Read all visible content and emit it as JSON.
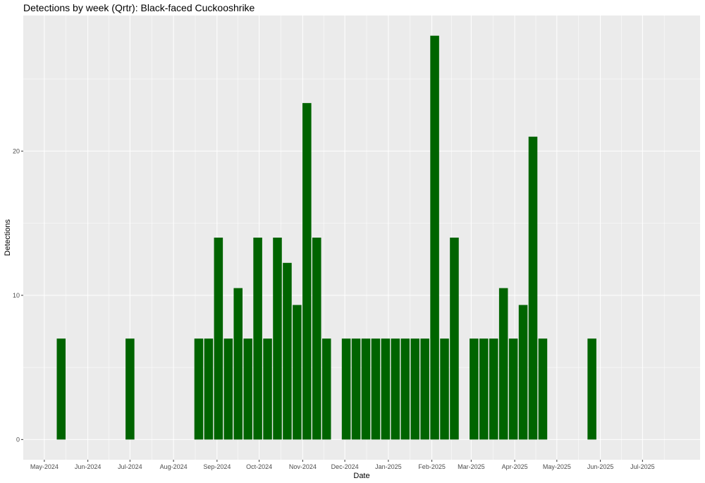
{
  "chart_data": {
    "type": "bar",
    "title": "Detections by week (Qrtr): Black-faced Cuckooshrike",
    "xlabel": "Date",
    "ylabel": "Detections",
    "xlim": [
      "2024-04-16",
      "2025-08-11"
    ],
    "ylim": [
      -1.4,
      29.4
    ],
    "x_ticks": [
      "May-2024",
      "Jun-2024",
      "Jul-2024",
      "Aug-2024",
      "Sep-2024",
      "Oct-2024",
      "Nov-2024",
      "Dec-2024",
      "Jan-2025",
      "Feb-2025",
      "Mar-2025",
      "Apr-2025",
      "May-2025",
      "Jun-2025",
      "Jul-2025"
    ],
    "x_tick_dates": [
      "2024-05-01",
      "2024-06-01",
      "2024-07-01",
      "2024-08-01",
      "2024-09-01",
      "2024-10-01",
      "2024-11-01",
      "2024-12-01",
      "2025-01-01",
      "2025-02-01",
      "2025-03-01",
      "2025-04-01",
      "2025-05-01",
      "2025-06-01",
      "2025-07-01"
    ],
    "y_ticks": [
      0,
      10,
      20
    ],
    "grid": true,
    "bar_color": "#006400",
    "panel_color": "#ebebeb",
    "x": [
      "2024-05-13",
      "2024-07-01",
      "2024-08-19",
      "2024-08-26",
      "2024-09-02",
      "2024-09-09",
      "2024-09-16",
      "2024-09-23",
      "2024-09-30",
      "2024-10-07",
      "2024-10-14",
      "2024-10-21",
      "2024-10-28",
      "2024-11-04",
      "2024-11-11",
      "2024-11-18",
      "2024-12-02",
      "2024-12-09",
      "2024-12-16",
      "2024-12-23",
      "2024-12-30",
      "2025-01-06",
      "2025-01-13",
      "2025-01-20",
      "2025-01-27",
      "2025-02-03",
      "2025-02-10",
      "2025-02-17",
      "2025-03-03",
      "2025-03-10",
      "2025-03-17",
      "2025-03-24",
      "2025-03-31",
      "2025-04-07",
      "2025-04-14",
      "2025-04-21",
      "2025-05-26"
    ],
    "values": [
      7,
      7,
      7,
      7,
      14,
      7,
      10.5,
      7,
      14,
      7,
      14,
      12.25,
      9.33,
      23.33,
      14,
      7,
      7,
      7,
      7,
      7,
      7,
      7,
      7,
      7,
      7,
      28,
      7,
      14,
      7,
      7,
      7,
      10.5,
      7,
      9.33,
      21,
      7,
      7
    ]
  }
}
